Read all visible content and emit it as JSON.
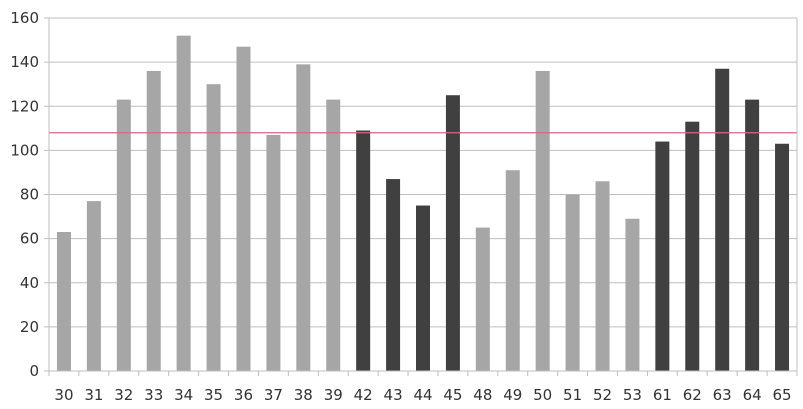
{
  "chart_data": {
    "type": "bar",
    "categories": [
      "30",
      "31",
      "32",
      "33",
      "34",
      "35",
      "36",
      "37",
      "38",
      "39",
      "42",
      "43",
      "44",
      "45",
      "48",
      "49",
      "50",
      "51",
      "52",
      "53",
      "61",
      "62",
      "63",
      "64",
      "65"
    ],
    "values": [
      63,
      77,
      123,
      136,
      152,
      130,
      147,
      107,
      139,
      123,
      109,
      87,
      75,
      125,
      65,
      91,
      136,
      80,
      86,
      69,
      104,
      113,
      137,
      123,
      103
    ],
    "bar_colors": [
      "#a6a6a6",
      "#a6a6a6",
      "#a6a6a6",
      "#a6a6a6",
      "#a6a6a6",
      "#a6a6a6",
      "#a6a6a6",
      "#a6a6a6",
      "#a6a6a6",
      "#a6a6a6",
      "#404040",
      "#404040",
      "#404040",
      "#404040",
      "#a6a6a6",
      "#a6a6a6",
      "#a6a6a6",
      "#a6a6a6",
      "#a6a6a6",
      "#a6a6a6",
      "#404040",
      "#404040",
      "#404040",
      "#404040",
      "#404040"
    ],
    "reference_line": {
      "value": 108,
      "color": "#e06080"
    },
    "title": "",
    "xlabel": "",
    "ylabel": "",
    "ylim": [
      0,
      160
    ],
    "yticks": [
      0,
      20,
      40,
      60,
      80,
      100,
      120,
      140,
      160
    ],
    "grid": true,
    "colors": {
      "grid": "#bfbfbf",
      "light_bar": "#a6a6a6",
      "dark_bar": "#404040"
    }
  }
}
